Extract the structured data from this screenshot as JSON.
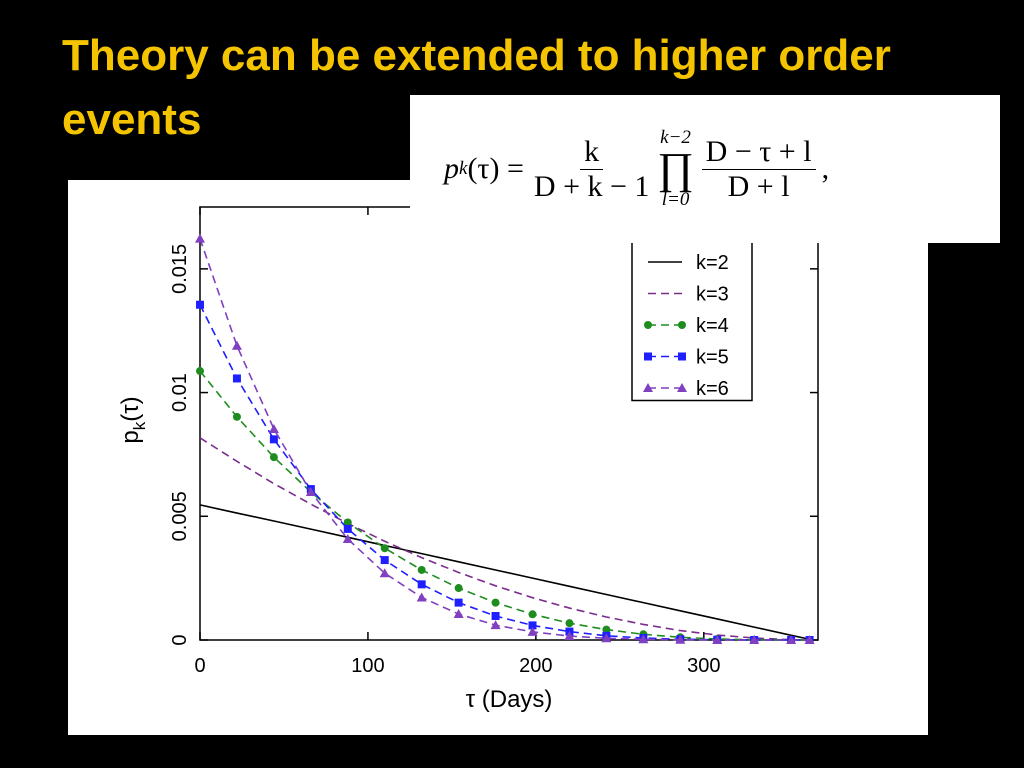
{
  "title": "Theory can be extended to higher order events",
  "formula": {
    "lhs_p": "p",
    "lhs_sub": "k",
    "lhs_rest": "(τ) =",
    "frac1_num": "k",
    "frac1_den": "D + k − 1",
    "prod_upper": "k−2",
    "prod_symbol": "∏",
    "prod_lower": "l=0",
    "frac2_num": "D − τ + l",
    "frac2_den": "D + l",
    "tail": ","
  },
  "chart_data": {
    "type": "line",
    "x_label": "τ (Days)",
    "y_label": [
      "p",
      "k",
      "(τ)"
    ],
    "x": [
      0,
      22,
      44,
      66,
      88,
      110,
      132,
      154,
      176,
      198,
      220,
      242,
      264,
      286,
      308,
      330,
      352,
      363
    ],
    "series": [
      {
        "name": "k=2",
        "color": "#000000",
        "dash": false,
        "marker": null,
        "values": [
          0.00546,
          0.00513,
          0.00481,
          0.00448,
          0.00415,
          0.00382,
          0.00349,
          0.00316,
          0.00283,
          0.0025,
          0.00217,
          0.00184,
          0.00151,
          0.00118,
          0.00085,
          0.00052,
          0.00019,
          3e-05
        ]
      },
      {
        "name": "k=3",
        "color": "#7b2d8e",
        "dash": true,
        "marker": null,
        "values": [
          0.00817,
          0.00722,
          0.00632,
          0.00549,
          0.00471,
          0.00399,
          0.00333,
          0.00273,
          0.00219,
          0.00171,
          0.00129,
          0.00093,
          0.00063,
          0.00038,
          0.0002,
          8e-05,
          1e-05,
          0
        ]
      },
      {
        "name": "k=4",
        "color": "#1e8c1e",
        "dash": true,
        "marker": "circle",
        "values": [
          0.01087,
          0.00902,
          0.00739,
          0.00598,
          0.00475,
          0.00371,
          0.00283,
          0.0021,
          0.00151,
          0.00104,
          0.00068,
          0.00042,
          0.00023,
          0.00011,
          4e-05,
          1e-05,
          0,
          0
        ]
      },
      {
        "name": "k=5",
        "color": "#1f1fff",
        "dash": true,
        "marker": "square",
        "values": [
          0.01355,
          0.01057,
          0.00811,
          0.0061,
          0.00449,
          0.00323,
          0.00225,
          0.00151,
          0.00097,
          0.00059,
          0.00034,
          0.00017,
          8e-05,
          3e-05,
          1e-05,
          0,
          0,
          0
        ]
      },
      {
        "name": "k=6",
        "color": "#8040c0",
        "dash": true,
        "marker": "triangle",
        "values": [
          0.01622,
          0.01189,
          0.00853,
          0.00598,
          0.00408,
          0.0027,
          0.00172,
          0.00105,
          0.0006,
          0.00033,
          0.00016,
          7e-05,
          3e-05,
          1e-05,
          0,
          0,
          0,
          0
        ]
      }
    ],
    "xlim": [
      0,
      368
    ],
    "xticks": [
      0,
      100,
      200,
      300
    ],
    "ylim": [
      0,
      0.0175
    ],
    "yticks": [
      0,
      0.005,
      0.01,
      0.015
    ],
    "legend": "upper-right"
  }
}
